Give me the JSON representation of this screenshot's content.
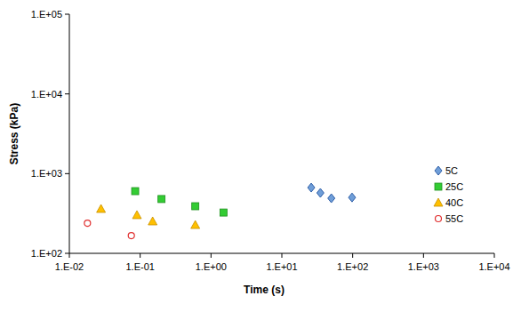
{
  "chart_data": {
    "type": "scatter",
    "x_label": "Time (s)",
    "y_label": "Stress (kPa)",
    "log": true,
    "grid": false,
    "legend": "right",
    "xlim": [
      0.01,
      10000
    ],
    "ylim": [
      100,
      100000
    ],
    "xticks": [
      {
        "value": 0.01,
        "label": "1.E-02"
      },
      {
        "value": 0.1,
        "label": "1.E-01"
      },
      {
        "value": 1,
        "label": "1.E+00"
      },
      {
        "value": 10,
        "label": "1.E+01"
      },
      {
        "value": 100,
        "label": "1.E+02"
      },
      {
        "value": 1000,
        "label": "1.E+03"
      },
      {
        "value": 10000,
        "label": "1.E+04"
      }
    ],
    "yticks": [
      {
        "value": 100,
        "label": "1.E+02"
      },
      {
        "value": 1000,
        "label": "1.E+03"
      },
      {
        "value": 10000,
        "label": "1.E+04"
      },
      {
        "value": 100000,
        "label": "1.E+05"
      }
    ],
    "series": [
      {
        "name": "5C",
        "color": "#6f9ed8",
        "marker": "diamond",
        "x": [
          26,
          35,
          50,
          98
        ],
        "values": [
          668,
          573,
          491,
          502
        ]
      },
      {
        "name": "25C",
        "color": "#33cc33",
        "marker": "square",
        "x": [
          0.085,
          0.2,
          0.6,
          1.5
        ],
        "values": [
          603,
          480,
          390,
          325
        ]
      },
      {
        "name": "40C",
        "color": "#ffc000",
        "marker": "triangle",
        "x": [
          0.028,
          0.09,
          0.15,
          0.6
        ],
        "values": [
          361,
          302,
          252,
          227
        ]
      },
      {
        "name": "55C",
        "color": "#e03030",
        "marker": "open-circle",
        "x": [
          0.018,
          0.075
        ],
        "values": [
          239,
          167
        ]
      }
    ]
  }
}
